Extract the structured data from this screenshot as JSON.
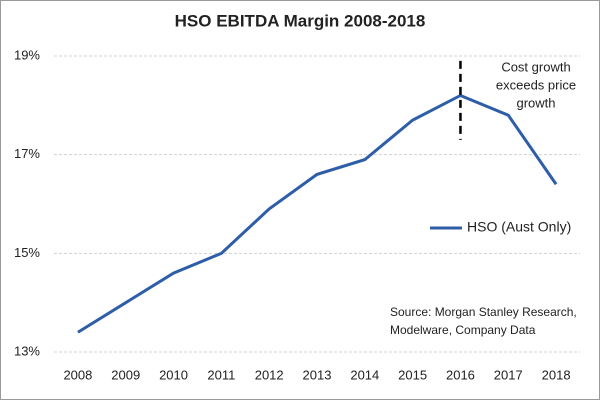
{
  "chart_data": {
    "type": "line",
    "title": "HSO EBITDA Margin 2008-2018",
    "x": [
      2008,
      2009,
      2010,
      2011,
      2012,
      2013,
      2014,
      2015,
      2016,
      2017,
      2018
    ],
    "xlim": [
      2007.5,
      2018.5
    ],
    "series": [
      {
        "name": "HSO (Aust Only)",
        "color": "#2e5ea8",
        "values": [
          13.4,
          14.0,
          14.6,
          15.0,
          15.9,
          16.6,
          16.9,
          17.7,
          18.2,
          17.8,
          16.4
        ]
      }
    ],
    "ylim": [
      13,
      19
    ],
    "yticks": [
      {
        "value": 13,
        "label": "13%"
      },
      {
        "value": 15,
        "label": "15%"
      },
      {
        "value": 17,
        "label": "17%"
      },
      {
        "value": 19,
        "label": "19%"
      }
    ],
    "grid": true,
    "annotation": {
      "lines": [
        "Cost growth",
        "exceeds price",
        "growth"
      ],
      "color": "#e8332a",
      "x": 2016,
      "y": [
        17.3,
        18.9
      ]
    },
    "source": [
      "Source: Morgan Stanley Research,",
      "Modelware, Company Data"
    ]
  }
}
